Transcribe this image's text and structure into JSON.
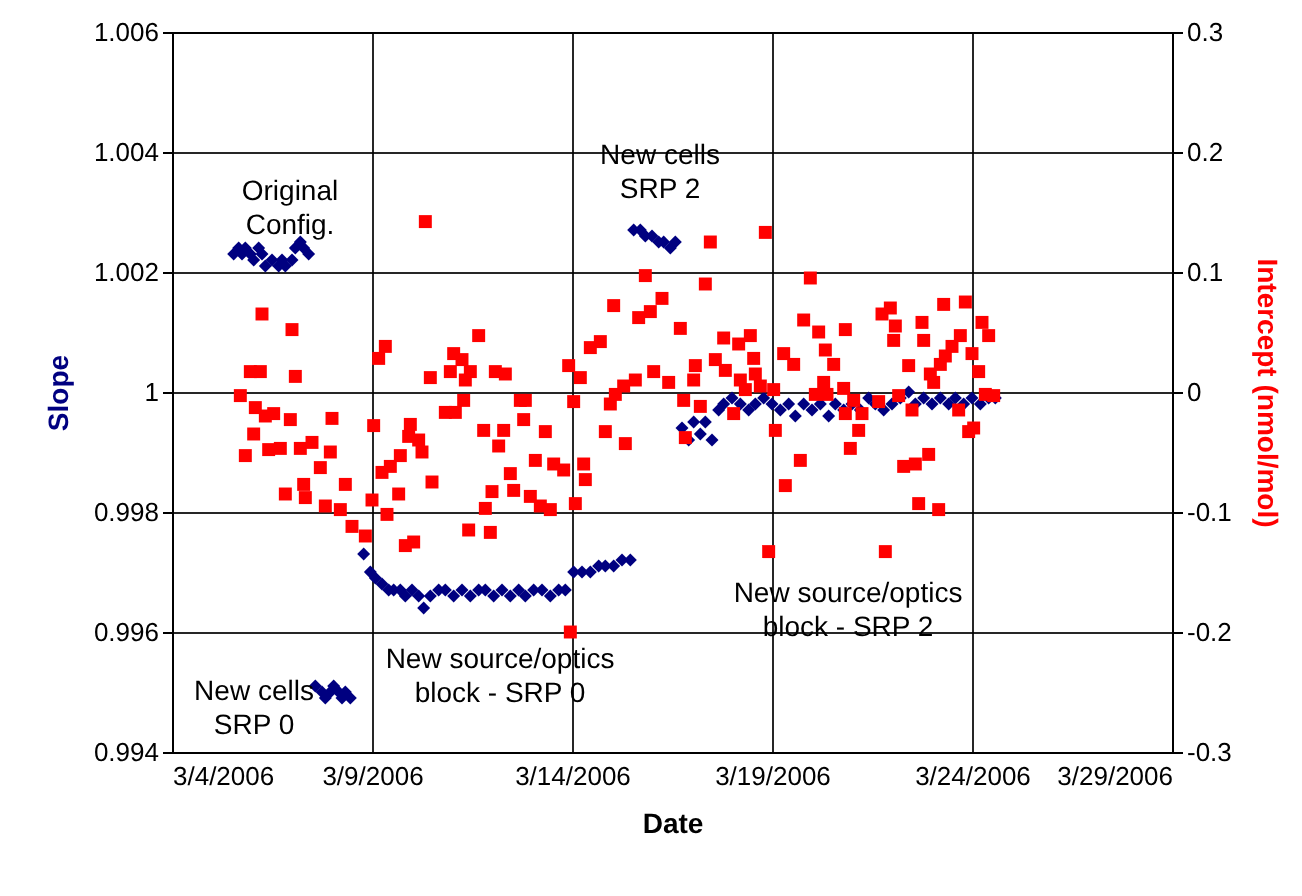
{
  "chart_data": {
    "type": "scatter",
    "xlabel": "Date",
    "ylabel": "Slope",
    "y2label": "Intercept (nmol/mol)",
    "grid": true,
    "xlim": [
      "2006-03-04",
      "2006-03-29"
    ],
    "xticks": [
      {
        "value": "2006-03-04",
        "label": "3/4/2006"
      },
      {
        "value": "2006-03-09",
        "label": "3/9/2006"
      },
      {
        "value": "2006-03-14",
        "label": "3/14/2006"
      },
      {
        "value": "2006-03-19",
        "label": "3/19/2006"
      },
      {
        "value": "2006-03-24",
        "label": "3/24/2006"
      },
      {
        "value": "2006-03-29",
        "label": "3/29/2006"
      }
    ],
    "ylim": [
      0.994,
      1.006
    ],
    "yticks": [
      0.994,
      0.996,
      0.998,
      1,
      1.002,
      1.004,
      1.006
    ],
    "y2lim": [
      -0.3,
      0.3
    ],
    "y2ticks": [
      -0.3,
      -0.2,
      -0.1,
      0,
      0.1,
      0.2,
      0.3
    ],
    "annotations": [
      "Original\nConfig.",
      "New cells\nSRP 0",
      "New source/optics\nblock - SRP 0",
      "New cells\nSRP 2",
      "New source/optics\nblock - SRP 2"
    ],
    "series": [
      {
        "color": "#000080",
        "marker": "diamond",
        "x": [
          "2006-03-05T13:00",
          "2006-03-05T16:00",
          "2006-03-05T18:00",
          "2006-03-05T20:00",
          "2006-03-05T23:00",
          "2006-03-06T01:00",
          "2006-03-06T04:00",
          "2006-03-06T06:00",
          "2006-03-06T08:00",
          "2006-03-06T12:00",
          "2006-03-06T16:00",
          "2006-03-06T18:00",
          "2006-03-06T20:00",
          "2006-03-07T00:00",
          "2006-03-07T02:00",
          "2006-03-07T05:00",
          "2006-03-07T07:00",
          "2006-03-07T10:00",
          "2006-03-07T14:00",
          "2006-03-07T18:00",
          "2006-03-07T20:00",
          "2006-03-07T23:00",
          "2006-03-08T01:00",
          "2006-03-08T04:00",
          "2006-03-08T06:00",
          "2006-03-08T08:00",
          "2006-03-08T11:00",
          "2006-03-08T19:00",
          "2006-03-08T23:00",
          "2006-03-09T02:00",
          "2006-03-09T06:00",
          "2006-03-09T10:00",
          "2006-03-09T13:00",
          "2006-03-09T17:00",
          "2006-03-09T20:00",
          "2006-03-10T00:00",
          "2006-03-10T04:00",
          "2006-03-10T07:00",
          "2006-03-10T11:00",
          "2006-03-10T16:00",
          "2006-03-10T20:00",
          "2006-03-11T01:00",
          "2006-03-11T06:00",
          "2006-03-11T11:00",
          "2006-03-11T16:00",
          "2006-03-11T20:00",
          "2006-03-12T01:00",
          "2006-03-12T06:00",
          "2006-03-12T11:00",
          "2006-03-12T16:00",
          "2006-03-12T20:00",
          "2006-03-13T01:00",
          "2006-03-13T06:00",
          "2006-03-13T11:00",
          "2006-03-13T16:00",
          "2006-03-13T20:00",
          "2006-03-14T01:00",
          "2006-03-14T06:00",
          "2006-03-14T11:00",
          "2006-03-14T16:00",
          "2006-03-14T20:00",
          "2006-03-15T01:00",
          "2006-03-15T06:00",
          "2006-03-15T11:00",
          "2006-03-15T13:00",
          "2006-03-15T17:00",
          "2006-03-15T20:00",
          "2006-03-16T00:00",
          "2006-03-16T04:00",
          "2006-03-16T07:00",
          "2006-03-16T11:00",
          "2006-03-16T14:00",
          "2006-03-16T18:00",
          "2006-03-16T22:00",
          "2006-03-17T01:00",
          "2006-03-17T05:00",
          "2006-03-17T08:00",
          "2006-03-17T12:00",
          "2006-03-17T16:00",
          "2006-03-17T19:00",
          "2006-03-18T00:00",
          "2006-03-18T05:00",
          "2006-03-18T10:00",
          "2006-03-18T14:00",
          "2006-03-18T19:00",
          "2006-03-19T00:00",
          "2006-03-19T05:00",
          "2006-03-19T10:00",
          "2006-03-19T14:00",
          "2006-03-19T19:00",
          "2006-03-20T00:00",
          "2006-03-20T05:00",
          "2006-03-20T10:00",
          "2006-03-20T14:00",
          "2006-03-20T19:00",
          "2006-03-21T00:00",
          "2006-03-21T05:00",
          "2006-03-21T10:00",
          "2006-03-21T14:00",
          "2006-03-21T19:00",
          "2006-03-22T00:00",
          "2006-03-22T05:00",
          "2006-03-22T10:00",
          "2006-03-22T14:00",
          "2006-03-22T19:00",
          "2006-03-23T00:00",
          "2006-03-23T05:00",
          "2006-03-23T10:00",
          "2006-03-23T14:00",
          "2006-03-23T19:00",
          "2006-03-24T00:00",
          "2006-03-24T05:00",
          "2006-03-24T10:00",
          "2006-03-24T14:00"
        ],
        "values": [
          1.0023,
          1.0024,
          1.0023,
          1.0024,
          1.0023,
          1.0022,
          1.0024,
          1.0023,
          1.0021,
          1.0022,
          1.0021,
          1.0022,
          1.0021,
          1.0022,
          1.0024,
          1.0025,
          1.0024,
          1.0023,
          0.9951,
          0.995,
          0.9949,
          0.995,
          0.9951,
          0.995,
          0.9949,
          0.995,
          0.9949,
          0.9973,
          0.997,
          0.9969,
          0.9968,
          0.9967,
          0.9967,
          0.9967,
          0.9966,
          0.9967,
          0.9966,
          0.9964,
          0.9966,
          0.9967,
          0.9967,
          0.9966,
          0.9967,
          0.9966,
          0.9967,
          0.9967,
          0.9966,
          0.9967,
          0.9966,
          0.9967,
          0.9966,
          0.9967,
          0.9967,
          0.9966,
          0.9967,
          0.9967,
          0.997,
          0.997,
          0.997,
          0.9971,
          0.9971,
          0.9971,
          0.9972,
          0.9972,
          1.0027,
          1.0027,
          1.0026,
          1.0026,
          1.0025,
          1.0025,
          1.0024,
          1.0025,
          0.9994,
          0.9992,
          0.9995,
          0.9993,
          0.9995,
          0.9992,
          0.9997,
          0.9998,
          0.9999,
          0.9998,
          0.9997,
          0.9998,
          0.9999,
          0.9998,
          0.9997,
          0.9998,
          0.9996,
          0.9998,
          0.9997,
          0.9998,
          0.9996,
          0.9998,
          0.9997,
          0.9998,
          0.9997,
          0.9999,
          0.9998,
          0.9997,
          0.9998,
          0.9999,
          1.0,
          0.9998,
          0.9999,
          0.9998,
          0.9999,
          0.9998,
          0.9999,
          0.9998,
          0.9999,
          0.9998,
          0.9999,
          0.9999
        ]
      },
      {
        "color": "#ff0000",
        "marker": "square",
        "axis": "y2",
        "x": [
          "2006-03-06T06:00",
          "2006-03-07T00:00",
          "2006-03-05T23:00",
          "2006-03-06T05:00",
          "2006-03-07T02:00",
          "2006-03-05T17:00",
          "2006-03-06T02:00",
          "2006-03-06T08:00",
          "2006-03-06T13:00",
          "2006-03-06T23:00",
          "2006-03-08T00:00",
          "2006-03-06T01:00",
          "2006-03-05T20:00",
          "2006-03-06T10:00",
          "2006-03-06T17:00",
          "2006-03-07T05:00",
          "2006-03-07T12:00",
          "2006-03-07T23:00",
          "2006-03-07T17:00",
          "2006-03-06T20:00",
          "2006-03-07T07:00",
          "2006-03-07T08:00",
          "2006-03-07T20:00",
          "2006-03-08T05:00",
          "2006-03-08T08:00",
          "2006-03-08T12:00",
          "2006-03-08T20:00",
          "2006-03-09T00:00",
          "2006-03-09T01:00",
          "2006-03-09T04:00",
          "2006-03-09T08:00",
          "2006-03-10T08:00",
          "2006-03-10T11:00",
          "2006-03-09T23:00",
          "2006-03-09T22:00",
          "2006-03-10T04:00",
          "2006-03-10T06:00",
          "2006-03-09T17:00",
          "2006-03-09T11:00",
          "2006-03-09T06:00",
          "2006-03-10T12:00",
          "2006-03-09T16:00",
          "2006-03-09T09:00",
          "2006-03-09T20:00",
          "2006-03-10T01:00",
          "2006-03-11T01:00",
          "2006-03-11T06:00",
          "2006-03-11T16:00",
          "2006-03-10T23:00",
          "2006-03-11T11:00",
          "2006-03-11T08:00",
          "2006-03-11T07:00",
          "2006-03-10T20:00",
          "2006-03-11T02:00",
          "2006-03-11T19:00",
          "2006-03-12T07:00",
          "2006-03-12T04:00",
          "2006-03-12T02:00",
          "2006-03-12T08:00",
          "2006-03-12T17:00",
          "2006-03-12T20:00",
          "2006-03-12T19:00",
          "2006-03-13T08:00",
          "2006-03-13T02:00",
          "2006-03-13T13:00",
          "2006-03-12T11:00",
          "2006-03-12T13:00",
          "2006-03-12T00:00",
          "2006-03-11T20:00",
          "2006-03-12T23:00",
          "2006-03-13T05:00",
          "2006-03-13T11:00",
          "2006-03-11T10:00",
          "2006-03-11T23:00",
          "2006-03-13T23:00",
          "2006-03-17T11:00",
          "2006-03-18T20:00",
          "2006-03-15T20:00",
          "2006-03-17T08:00",
          "2006-03-16T06:00",
          "2006-03-15T01:00",
          "2006-03-15T23:00",
          "2006-03-15T16:00",
          "2006-03-16T17:00",
          "2006-03-19T23:00",
          "2006-03-19T19:00",
          "2006-03-20T04:00",
          "2006-03-20T20:00",
          "2006-03-17T19:00",
          "2006-03-18T04:00",
          "2006-03-18T11:00",
          "2006-03-14T17:00",
          "2006-03-14T11:00",
          "2006-03-13T22:00",
          "2006-03-14T05:00",
          "2006-03-17T14:00",
          "2006-03-17T02:00",
          "2006-03-18T13:00",
          "2006-03-17T20:00",
          "2006-03-17T01:00",
          "2006-03-19T07:00",
          "2006-03-19T13:00",
          "2006-03-20T08:00",
          "2006-03-20T13:00",
          "2006-03-16T01:00",
          "2006-03-16T10:00",
          "2006-03-15T07:00",
          "2006-03-15T14:00",
          "2006-03-15T02:00",
          "2006-03-14T01:00",
          "2006-03-14T23:00",
          "2006-03-18T05:00",
          "2006-03-18T08:00",
          "2006-03-18T14:00",
          "2006-03-18T17:00",
          "2006-03-19T01:00",
          "2006-03-20T02:00",
          "2006-03-20T09:00",
          "2006-03-20T19:00",
          "2006-03-17T05:00",
          "2006-03-18T01:00",
          "2006-03-20T20:00",
          "2006-03-16T19:00",
          "2006-03-14T20:00",
          "2006-03-15T08:00",
          "2006-03-16T20:00",
          "2006-03-19T02:00",
          "2006-03-20T23:00",
          "2006-03-19T17:00",
          "2006-03-13T19:00",
          "2006-03-14T07:00",
          "2006-03-14T08:00",
          "2006-03-14T02:00",
          "2006-03-19T08:00",
          "2006-03-18T22:00",
          "2006-03-20T07:00",
          "2006-03-21T01:00",
          "2006-03-21T04:00",
          "2006-03-21T23:00",
          "2006-03-21T18:00",
          "2006-03-23T07:00",
          "2006-03-23T20:00",
          "2006-03-22T02:00",
          "2006-03-22T01:00",
          "2006-03-22T18:00",
          "2006-03-22T19:00",
          "2006-03-24T06:00",
          "2006-03-24T10:00",
          "2006-03-23T17:00",
          "2006-03-23T12:00",
          "2006-03-23T08:00",
          "2006-03-23T05:00",
          "2006-03-24T00:00",
          "2006-03-24T04:00",
          "2006-03-22T10:00",
          "2006-03-22T23:00",
          "2006-03-23T01:00",
          "2006-03-21T16:00",
          "2006-03-22T04:00",
          "2006-03-22T12:00",
          "2006-03-23T16:00",
          "2006-03-24T08:00",
          "2006-03-24T13:00",
          "2006-03-21T06:00",
          "2006-03-23T22:00",
          "2006-03-24T01:00",
          "2006-03-22T22:00",
          "2006-03-22T14:00",
          "2006-03-22T07:00",
          "2006-03-22T16:00",
          "2006-03-23T04:00",
          "2006-03-21T20:00"
        ],
        "values": [
          0.065,
          0.052,
          0.017,
          0.017,
          0.013,
          -0.003,
          -0.013,
          -0.02,
          -0.018,
          -0.023,
          -0.022,
          -0.035,
          -0.053,
          -0.048,
          -0.047,
          -0.047,
          -0.042,
          -0.05,
          -0.063,
          -0.085,
          -0.077,
          -0.088,
          -0.095,
          -0.098,
          -0.077,
          -0.112,
          -0.12,
          -0.09,
          -0.028,
          0.028,
          0.038,
          0.142,
          0.012,
          -0.027,
          -0.037,
          -0.04,
          -0.05,
          -0.053,
          -0.062,
          -0.067,
          -0.075,
          -0.085,
          -0.102,
          -0.128,
          -0.125,
          0.032,
          0.027,
          0.047,
          0.017,
          0.017,
          0.01,
          -0.007,
          -0.017,
          -0.017,
          -0.032,
          -0.032,
          -0.045,
          0.017,
          0.015,
          -0.007,
          -0.007,
          -0.023,
          -0.033,
          -0.057,
          -0.06,
          -0.068,
          -0.082,
          -0.083,
          -0.097,
          -0.087,
          -0.095,
          -0.098,
          -0.115,
          -0.117,
          -0.2,
          0.125,
          0.133,
          0.097,
          0.09,
          0.078,
          0.072,
          0.067,
          0.062,
          0.053,
          0.095,
          0.06,
          0.05,
          0.052,
          0.045,
          0.04,
          0.047,
          0.042,
          0.037,
          0.022,
          0.012,
          0.027,
          0.022,
          0.028,
          0.018,
          0.01,
          0.032,
          0.023,
          0.035,
          0.023,
          0.017,
          0.008,
          0.005,
          0.01,
          -0.002,
          -0.008,
          -0.01,
          0.01,
          0.002,
          0.015,
          0.005,
          0.002,
          -0.002,
          -0.002,
          0.003,
          -0.012,
          -0.018,
          -0.018,
          -0.007,
          -0.033,
          -0.043,
          -0.038,
          -0.032,
          -0.047,
          -0.057,
          -0.065,
          -0.06,
          -0.073,
          -0.093,
          -0.078,
          -0.133,
          0.008,
          -0.007,
          -0.032,
          0.07,
          0.065,
          0.073,
          0.075,
          0.055,
          0.043,
          0.058,
          0.043,
          0.058,
          0.047,
          0.047,
          0.038,
          0.03,
          0.023,
          0.032,
          0.017,
          0.022,
          0.015,
          0.008,
          -0.008,
          -0.003,
          -0.015,
          -0.015,
          -0.002,
          -0.003,
          -0.018,
          -0.033,
          -0.03,
          -0.052,
          -0.06,
          -0.062,
          -0.093,
          -0.098,
          -0.133
        ]
      }
    ]
  }
}
